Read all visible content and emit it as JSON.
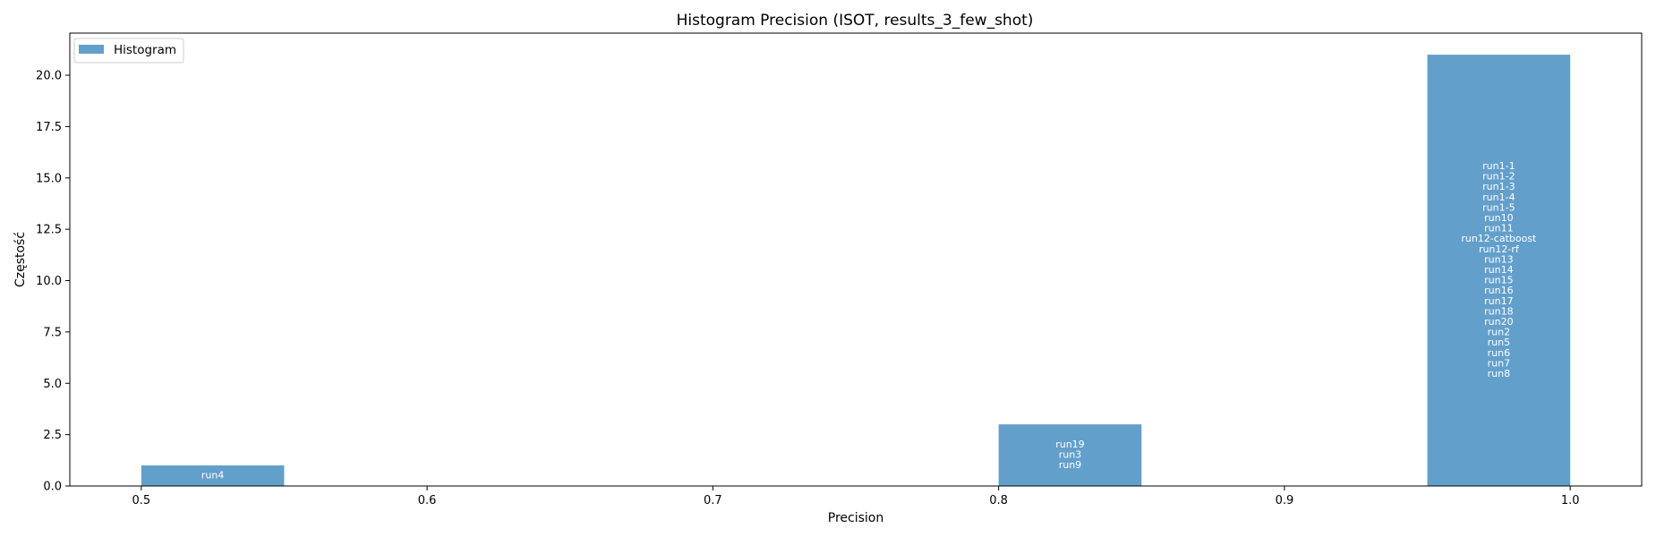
{
  "chart_data": {
    "type": "bar",
    "title": "Histogram Precision (ISOT, results_3_few_shot)",
    "xlabel": "Precision",
    "ylabel": "Częstość",
    "xlim": [
      0.475,
      1.025
    ],
    "ylim": [
      0,
      22.05
    ],
    "xticks": [
      0.5,
      0.6,
      0.7,
      0.8,
      0.9,
      1.0
    ],
    "xtick_labels": [
      "0.5",
      "0.6",
      "0.7",
      "0.8",
      "0.9",
      "1.0"
    ],
    "yticks": [
      0,
      2.5,
      5,
      7.5,
      10,
      12.5,
      15,
      17.5,
      20
    ],
    "ytick_labels": [
      "0.0",
      "2.5",
      "5.0",
      "7.5",
      "10.0",
      "12.5",
      "15.0",
      "17.5",
      "20.0"
    ],
    "grid": false,
    "legend_position": "upper-left",
    "series": [
      {
        "name": "Histogram",
        "color": "#639fcb",
        "bins": [
          {
            "x_start": 0.5,
            "x_end": 0.55,
            "value": 1,
            "labels": [
              "run4"
            ]
          },
          {
            "x_start": 0.8,
            "x_end": 0.85,
            "value": 3,
            "labels": [
              "run19",
              "run3",
              "run9"
            ]
          },
          {
            "x_start": 0.95,
            "x_end": 1.0,
            "value": 21,
            "labels": [
              "run1-1",
              "run1-2",
              "run1-3",
              "run1-4",
              "run1-5",
              "run10",
              "run11",
              "run12-catboost",
              "run12-rf",
              "run13",
              "run14",
              "run15",
              "run16",
              "run17",
              "run18",
              "run20",
              "run2",
              "run5",
              "run6",
              "run7",
              "run8"
            ]
          }
        ]
      }
    ]
  }
}
